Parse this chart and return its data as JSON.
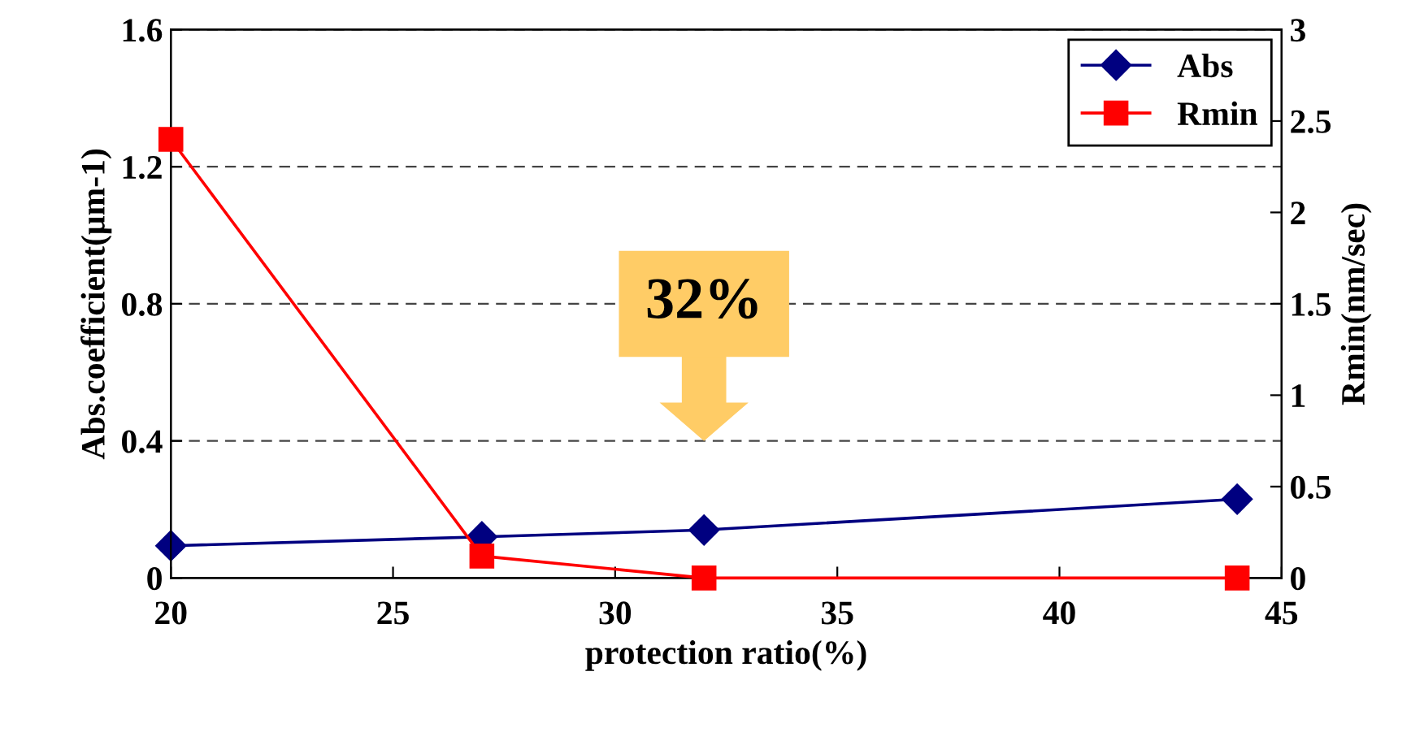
{
  "chart_data": {
    "type": "line",
    "xlabel": "protection ratio(%)",
    "ylabel": "Abs.coefficient(μm-1)",
    "y2label": "Rmin(nm/sec)",
    "x": [
      20,
      27,
      32,
      44
    ],
    "series": [
      {
        "name": "Abs",
        "color": "#000080",
        "marker": "diamond",
        "values": [
          0.094,
          0.12,
          0.14,
          0.23
        ]
      },
      {
        "name": "Rmin",
        "color": "#ff0000",
        "marker": "square",
        "axis": "y2",
        "values": [
          2.4,
          0.12,
          0,
          0
        ]
      }
    ],
    "xlim": [
      20,
      45
    ],
    "xticks": [
      20,
      25,
      30,
      35,
      40,
      45
    ],
    "ylim": [
      0,
      1.6
    ],
    "yticks": [
      0,
      0.4,
      0.8,
      1.2,
      1.6
    ],
    "y2lim": [
      0,
      3
    ],
    "y2ticks": [
      0,
      0.5,
      1,
      1.5,
      2,
      2.5,
      3
    ],
    "grid": "y",
    "legend": "top right",
    "line_style": "solid",
    "annotations": [
      "32%"
    ]
  }
}
